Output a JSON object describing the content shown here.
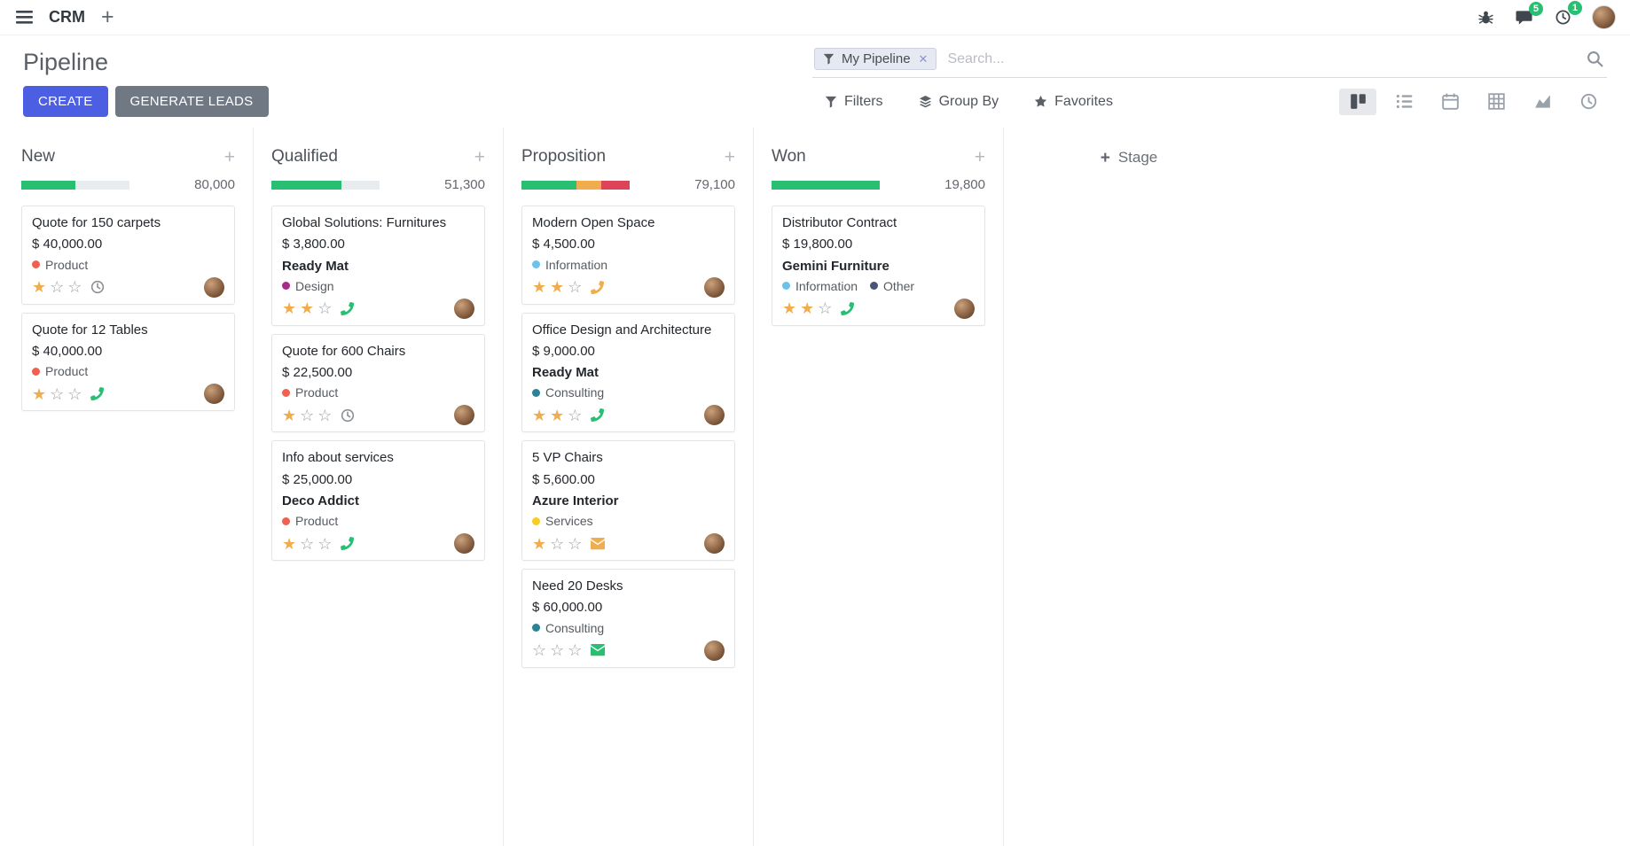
{
  "palette": {
    "primary": "#4c5fe2",
    "secondary": "#6f7883",
    "success": "#28bf73",
    "warning": "#f0ad4e",
    "danger": "#dd4459",
    "muted": "#8b9095",
    "star": "#f0ad4e"
  },
  "topbar": {
    "app_name": "CRM",
    "messages_badge": "5",
    "activities_badge": "1"
  },
  "control_panel": {
    "title": "Pipeline",
    "search_facet": "My Pipeline",
    "search_placeholder": "Search...",
    "create_label": "CREATE",
    "generate_leads_label": "GENERATE LEADS",
    "filters_label": "Filters",
    "group_by_label": "Group By",
    "favorites_label": "Favorites"
  },
  "view_switcher": {
    "active": "kanban",
    "views": [
      "kanban",
      "list",
      "calendar",
      "pivot",
      "graph",
      "activity"
    ]
  },
  "board": {
    "add_stage_label": "Stage",
    "columns": [
      {
        "name": "New",
        "count": "80,000",
        "progress": [
          {
            "color": "success",
            "pct": 50
          }
        ],
        "cards": [
          {
            "title": "Quote for 150 carpets",
            "amount": "$ 40,000.00",
            "partner": "",
            "tags": [
              {
                "label": "Product",
                "color": "#f06050"
              }
            ],
            "stars": 1,
            "activity": {
              "icon": "clock",
              "color": "muted"
            }
          },
          {
            "title": "Quote for 12 Tables",
            "amount": "$ 40,000.00",
            "partner": "",
            "tags": [
              {
                "label": "Product",
                "color": "#f06050"
              }
            ],
            "stars": 1,
            "activity": {
              "icon": "phone",
              "color": "success"
            }
          }
        ]
      },
      {
        "name": "Qualified",
        "count": "51,300",
        "progress": [
          {
            "color": "success",
            "pct": 65
          }
        ],
        "cards": [
          {
            "title": "Global Solutions: Furnitures",
            "amount": "$ 3,800.00",
            "partner": "Ready Mat",
            "tags": [
              {
                "label": "Design",
                "color": "#a72b8a"
              }
            ],
            "stars": 2,
            "activity": {
              "icon": "phone",
              "color": "success"
            }
          },
          {
            "title": "Quote for 600 Chairs",
            "amount": "$ 22,500.00",
            "partner": "",
            "tags": [
              {
                "label": "Product",
                "color": "#f06050"
              }
            ],
            "stars": 1,
            "activity": {
              "icon": "clock",
              "color": "muted"
            }
          },
          {
            "title": "Info about services",
            "amount": "$ 25,000.00",
            "partner": "Deco Addict",
            "tags": [
              {
                "label": "Product",
                "color": "#f06050"
              }
            ],
            "stars": 1,
            "activity": {
              "icon": "phone",
              "color": "success"
            }
          }
        ]
      },
      {
        "name": "Proposition",
        "count": "79,100",
        "progress": [
          {
            "color": "success",
            "pct": 51
          },
          {
            "color": "warning",
            "pct": 23
          },
          {
            "color": "danger",
            "pct": 26
          }
        ],
        "cards": [
          {
            "title": "Modern Open Space",
            "amount": "$ 4,500.00",
            "partner": "",
            "tags": [
              {
                "label": "Information",
                "color": "#6cc1ed"
              }
            ],
            "stars": 2,
            "activity": {
              "icon": "phone",
              "color": "warning"
            }
          },
          {
            "title": "Office Design and Architecture",
            "amount": "$ 9,000.00",
            "partner": "Ready Mat",
            "tags": [
              {
                "label": "Consulting",
                "color": "#2c8397"
              }
            ],
            "stars": 2,
            "activity": {
              "icon": "phone",
              "color": "success"
            }
          },
          {
            "title": "5 VP Chairs",
            "amount": "$ 5,600.00",
            "partner": "Azure Interior",
            "tags": [
              {
                "label": "Services",
                "color": "#f7cd1f"
              }
            ],
            "stars": 1,
            "activity": {
              "icon": "envelope",
              "color": "warning"
            }
          },
          {
            "title": "Need 20 Desks",
            "amount": "$ 60,000.00",
            "partner": "",
            "tags": [
              {
                "label": "Consulting",
                "color": "#2c8397"
              }
            ],
            "stars": 0,
            "activity": {
              "icon": "envelope",
              "color": "success"
            }
          }
        ]
      },
      {
        "name": "Won",
        "count": "19,800",
        "progress": [
          {
            "color": "success",
            "pct": 100
          }
        ],
        "cards": [
          {
            "title": "Distributor Contract",
            "amount": "$ 19,800.00",
            "partner": "Gemini Furniture",
            "tags": [
              {
                "label": "Information",
                "color": "#6cc1ed"
              },
              {
                "label": "Other",
                "color": "#475577"
              }
            ],
            "stars": 2,
            "activity": {
              "icon": "phone",
              "color": "success"
            }
          }
        ]
      }
    ]
  }
}
